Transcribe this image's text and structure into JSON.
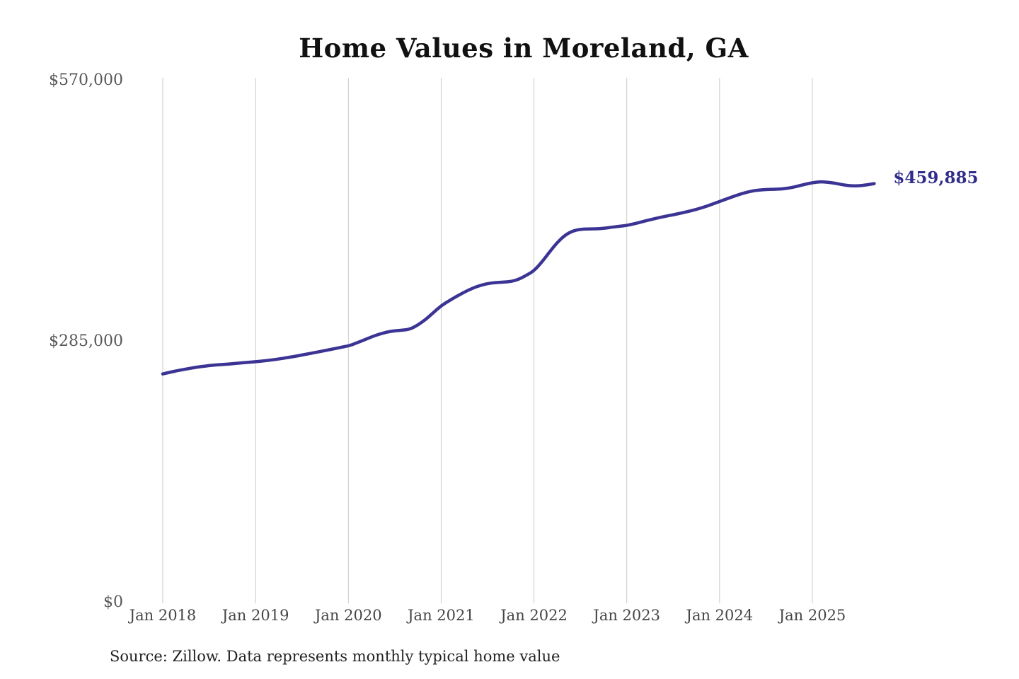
{
  "title": "Home Values in Moreland, GA",
  "source_note": "Source: Zillow. Data represents monthly typical home value",
  "colors": {
    "line": "#3c3494",
    "end_label": "#312d8a",
    "grid": "#c9c9c9",
    "y_tick_label": "#58585a",
    "x_tick_label": "#454547",
    "title": "#111111",
    "source": "#222222",
    "background": "#ffffff"
  },
  "chart_data": {
    "type": "line",
    "title": "Home Values in Moreland, GA",
    "series_name": "Monthly typical home value",
    "xlabel": "",
    "ylabel": "",
    "ylim": [
      0,
      570000
    ],
    "grid": "vertical-only",
    "legend": "none",
    "end_value": 459885,
    "end_value_label": "$459,885",
    "y_ticks": [
      {
        "label": "$0",
        "value": 0
      },
      {
        "label": "$285,000",
        "value": 285000
      },
      {
        "label": "$570,000",
        "value": 570000
      }
    ],
    "x_ticks": [
      {
        "label": "Jan 2018",
        "index": 0
      },
      {
        "label": "Jan 2019",
        "index": 12
      },
      {
        "label": "Jan 2020",
        "index": 24
      },
      {
        "label": "Jan 2021",
        "index": 36
      },
      {
        "label": "Jan 2022",
        "index": 48
      },
      {
        "label": "Jan 2023",
        "index": 60
      },
      {
        "label": "Jan 2024",
        "index": 72
      },
      {
        "label": "Jan 2025",
        "index": 84
      }
    ],
    "x": [
      "2018-01",
      "2018-02",
      "2018-03",
      "2018-04",
      "2018-05",
      "2018-06",
      "2018-07",
      "2018-08",
      "2018-09",
      "2018-10",
      "2018-11",
      "2018-12",
      "2019-01",
      "2019-02",
      "2019-03",
      "2019-04",
      "2019-05",
      "2019-06",
      "2019-07",
      "2019-08",
      "2019-09",
      "2019-10",
      "2019-11",
      "2019-12",
      "2020-01",
      "2020-02",
      "2020-03",
      "2020-04",
      "2020-05",
      "2020-06",
      "2020-07",
      "2020-08",
      "2020-09",
      "2020-10",
      "2020-11",
      "2020-12",
      "2021-01",
      "2021-02",
      "2021-03",
      "2021-04",
      "2021-05",
      "2021-06",
      "2021-07",
      "2021-08",
      "2021-09",
      "2021-10",
      "2021-11",
      "2021-12",
      "2022-01",
      "2022-02",
      "2022-03",
      "2022-04",
      "2022-05",
      "2022-06",
      "2022-07",
      "2022-08",
      "2022-09",
      "2022-10",
      "2022-11",
      "2022-12",
      "2023-01",
      "2023-02",
      "2023-03",
      "2023-04",
      "2023-05",
      "2023-06",
      "2023-07",
      "2023-08",
      "2023-09",
      "2023-10",
      "2023-11",
      "2023-12",
      "2024-01",
      "2024-02",
      "2024-03",
      "2024-04",
      "2024-05",
      "2024-06",
      "2024-07",
      "2024-08",
      "2024-09",
      "2024-10",
      "2024-11",
      "2024-12",
      "2025-01",
      "2025-02",
      "2025-03",
      "2025-04",
      "2025-05",
      "2025-06",
      "2025-07",
      "2025-08",
      "2025-09"
    ],
    "values": [
      252000,
      254000,
      255800,
      257400,
      258900,
      260100,
      261100,
      261900,
      262500,
      263200,
      264000,
      264700,
      265300,
      266200,
      267200,
      268400,
      269700,
      271100,
      272700,
      274300,
      275900,
      277600,
      279300,
      281000,
      282600,
      285600,
      289000,
      292500,
      295500,
      297800,
      299200,
      299800,
      301000,
      305500,
      311500,
      319000,
      326500,
      331800,
      336800,
      341400,
      345400,
      348600,
      350700,
      351800,
      352300,
      352800,
      355300,
      359600,
      364600,
      374000,
      385000,
      395500,
      403500,
      408200,
      410000,
      410400,
      410500,
      411000,
      412200,
      413200,
      414200,
      416100,
      418200,
      420400,
      422400,
      424200,
      425800,
      427600,
      429600,
      431700,
      434200,
      437200,
      440300,
      443400,
      446500,
      449300,
      451400,
      452800,
      453400,
      453600,
      454000,
      455000,
      456800,
      459000,
      460900,
      461900,
      461500,
      460100,
      458500,
      457400,
      457400,
      458400,
      459885
    ]
  }
}
